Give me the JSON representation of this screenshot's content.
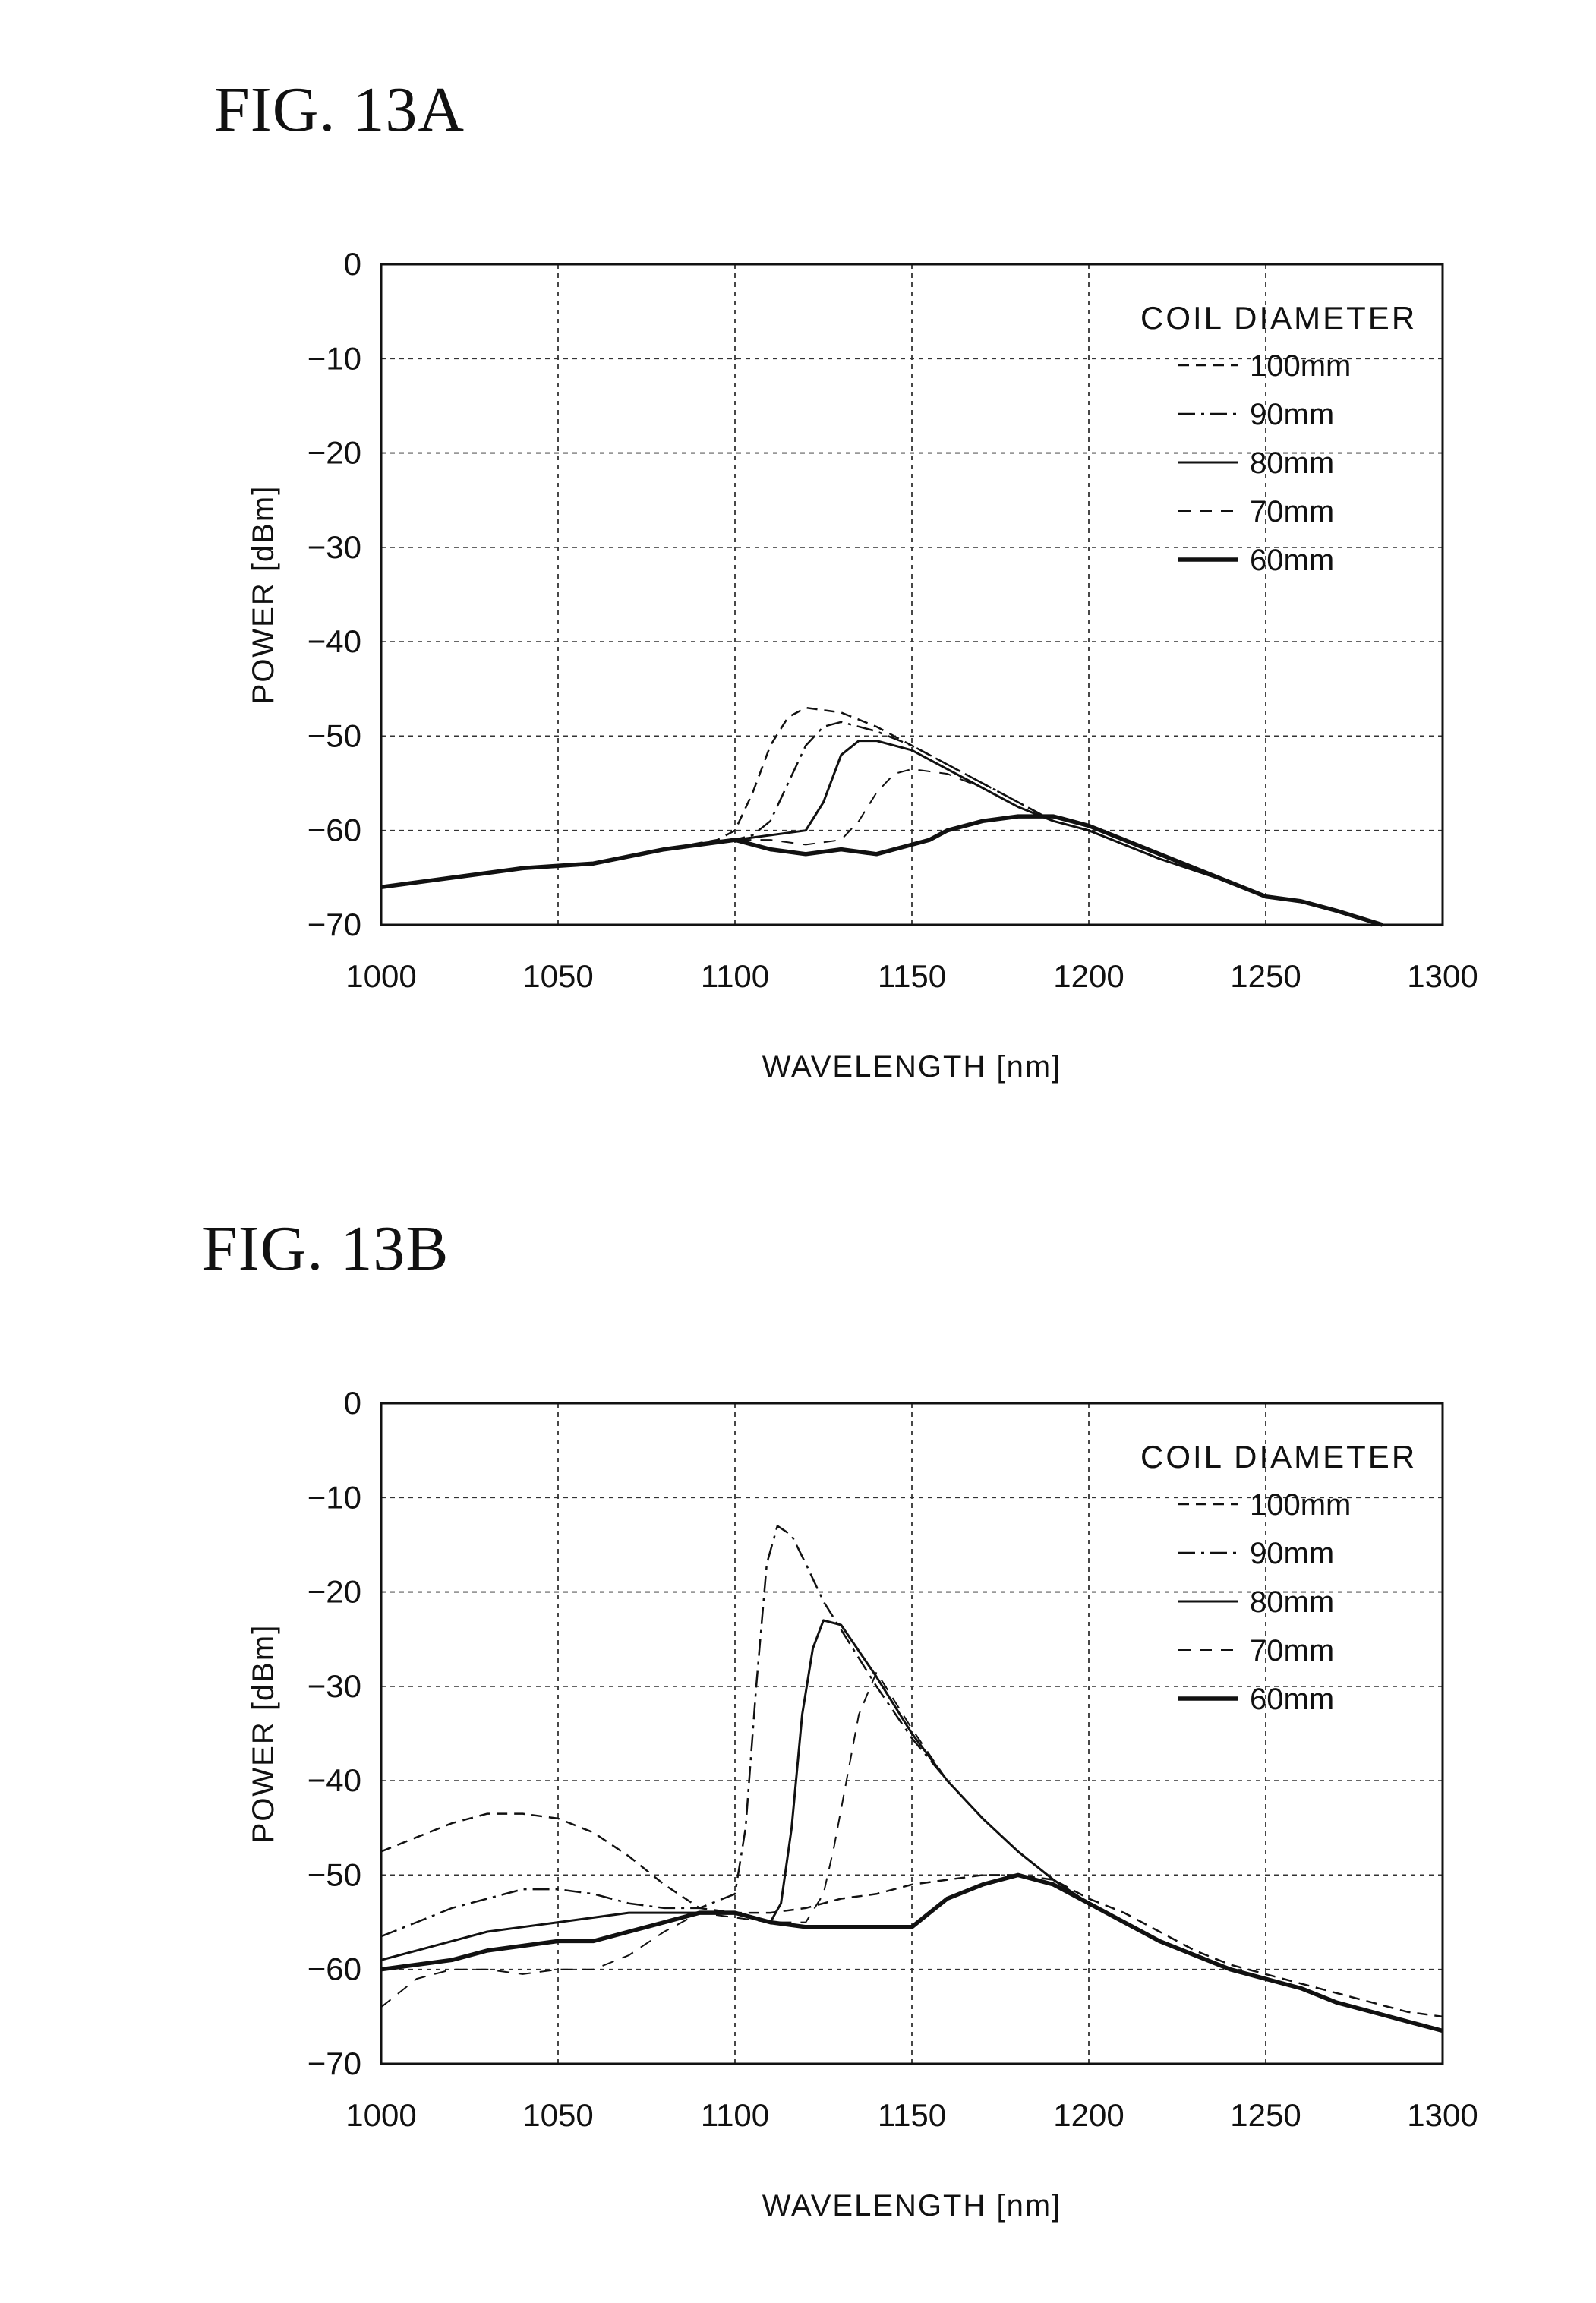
{
  "figures": [
    {
      "title": "FIG. 13A"
    },
    {
      "title": "FIG. 13B"
    }
  ],
  "chart_data": [
    {
      "type": "line",
      "title": "FIG. 13A",
      "xlabel": "WAVELENGTH [nm]",
      "ylabel": "POWER [dBm]",
      "xlim": [
        1000,
        1300
      ],
      "ylim": [
        -70,
        0
      ],
      "xticks": [
        1000,
        1050,
        1100,
        1150,
        1200,
        1250,
        1300
      ],
      "yticks": [
        0,
        -10,
        -20,
        -30,
        -40,
        -50,
        -60,
        -70
      ],
      "grid": true,
      "legend_title": "COIL DIAMETER",
      "legend_position": "top-right",
      "series": [
        {
          "name": "100mm",
          "style": "dashed",
          "x": [
            1000,
            1020,
            1040,
            1060,
            1080,
            1095,
            1100,
            1105,
            1110,
            1115,
            1120,
            1130,
            1140,
            1150,
            1160,
            1170,
            1180,
            1190,
            1200,
            1210,
            1220,
            1240,
            1250,
            1260,
            1270,
            1283
          ],
          "y": [
            -66,
            -65,
            -64,
            -63.5,
            -62,
            -61,
            -60,
            -56,
            -51,
            -48,
            -47,
            -47.5,
            -49,
            -51,
            -53,
            -55,
            -57,
            -59,
            -60,
            -61.5,
            -63,
            -65.5,
            -67,
            -67.5,
            -68.5,
            -70
          ]
        },
        {
          "name": "90mm",
          "style": "dashdot",
          "x": [
            1000,
            1020,
            1040,
            1060,
            1080,
            1100,
            1105,
            1110,
            1115,
            1120,
            1125,
            1130,
            1140,
            1150,
            1160,
            1170,
            1180,
            1190,
            1200,
            1210,
            1220,
            1240,
            1250,
            1260,
            1270,
            1283
          ],
          "y": [
            -66,
            -65,
            -64,
            -63.5,
            -62,
            -61,
            -60.5,
            -59,
            -55,
            -51,
            -49,
            -48.5,
            -49.5,
            -51,
            -53,
            -55,
            -57,
            -59,
            -60,
            -61.5,
            -63,
            -65.5,
            -67,
            -67.5,
            -68.5,
            -70
          ]
        },
        {
          "name": "80mm",
          "style": "solid",
          "x": [
            1000,
            1020,
            1040,
            1060,
            1080,
            1100,
            1110,
            1120,
            1125,
            1130,
            1135,
            1140,
            1150,
            1160,
            1170,
            1180,
            1190,
            1200,
            1210,
            1220,
            1240,
            1250,
            1260,
            1270,
            1283
          ],
          "y": [
            -66,
            -65,
            -64,
            -63.5,
            -62,
            -61,
            -60.5,
            -60,
            -57,
            -52,
            -50.5,
            -50.5,
            -51.5,
            -53.5,
            -55.5,
            -57.5,
            -59,
            -60,
            -61.5,
            -63,
            -65.5,
            -67,
            -67.5,
            -68.5,
            -70
          ]
        },
        {
          "name": "70mm",
          "style": "dashed-light",
          "x": [
            1000,
            1020,
            1040,
            1060,
            1080,
            1100,
            1110,
            1120,
            1130,
            1135,
            1140,
            1145,
            1150,
            1160,
            1170,
            1180,
            1190,
            1200,
            1210,
            1220,
            1240,
            1250,
            1260,
            1270,
            1283
          ],
          "y": [
            -66,
            -65,
            -64,
            -63.5,
            -62,
            -61,
            -61,
            -61.5,
            -61,
            -59,
            -56,
            -54,
            -53.5,
            -54,
            -55.5,
            -57.5,
            -59,
            -60,
            -61.5,
            -63,
            -65.5,
            -67,
            -67.5,
            -68.5,
            -70
          ]
        },
        {
          "name": "60mm",
          "style": "solid-bold",
          "x": [
            1000,
            1020,
            1040,
            1060,
            1080,
            1100,
            1110,
            1120,
            1130,
            1140,
            1150,
            1155,
            1160,
            1170,
            1180,
            1190,
            1200,
            1210,
            1220,
            1240,
            1250,
            1260,
            1270,
            1283
          ],
          "y": [
            -66,
            -65,
            -64,
            -63.5,
            -62,
            -61,
            -62,
            -62.5,
            -62,
            -62.5,
            -61.5,
            -61,
            -60,
            -59,
            -58.5,
            -58.5,
            -59.5,
            -61,
            -62.5,
            -65.5,
            -67,
            -67.5,
            -68.5,
            -70
          ]
        }
      ]
    },
    {
      "type": "line",
      "title": "FIG. 13B",
      "xlabel": "WAVELENGTH [nm]",
      "ylabel": "POWER [dBm]",
      "xlim": [
        1000,
        1300
      ],
      "ylim": [
        -70,
        0
      ],
      "xticks": [
        1000,
        1050,
        1100,
        1150,
        1200,
        1250,
        1300
      ],
      "yticks": [
        0,
        -10,
        -20,
        -30,
        -40,
        -50,
        -60,
        -70
      ],
      "grid": true,
      "legend_title": "COIL DIAMETER",
      "legend_position": "top-right",
      "series": [
        {
          "name": "100mm",
          "style": "dashed",
          "x": [
            1000,
            1010,
            1020,
            1030,
            1040,
            1050,
            1060,
            1070,
            1080,
            1090,
            1100,
            1110,
            1120,
            1130,
            1140,
            1150,
            1160,
            1170,
            1180,
            1190,
            1200,
            1210,
            1220,
            1230,
            1240,
            1250,
            1260,
            1270,
            1280,
            1290,
            1300
          ],
          "y": [
            -47.5,
            -46,
            -44.5,
            -43.5,
            -43.5,
            -44,
            -45.5,
            -48,
            -51,
            -53.5,
            -54,
            -54,
            -53.5,
            -52.5,
            -52,
            -51,
            -50.5,
            -50,
            -50,
            -50.5,
            -52.5,
            -54,
            -56,
            -58,
            -59.5,
            -60.5,
            -61.5,
            -62.5,
            -63.5,
            -64.5,
            -65
          ]
        },
        {
          "name": "90mm",
          "style": "dashdot",
          "x": [
            1000,
            1010,
            1020,
            1030,
            1040,
            1050,
            1060,
            1070,
            1080,
            1090,
            1100,
            1103,
            1106,
            1109,
            1112,
            1116,
            1120,
            1125,
            1130,
            1140,
            1150,
            1160,
            1170,
            1180,
            1190,
            1200,
            1210,
            1220,
            1230,
            1240,
            1250,
            1260,
            1270,
            1280,
            1290,
            1300
          ],
          "y": [
            -56.5,
            -55,
            -53.5,
            -52.5,
            -51.5,
            -51.5,
            -52,
            -53,
            -53.5,
            -53.5,
            -52,
            -45,
            -30,
            -17,
            -13,
            -14,
            -17,
            -21,
            -24,
            -30,
            -35.5,
            -40,
            -44,
            -47.5,
            -50.5,
            -53,
            -55,
            -57,
            -58.5,
            -60,
            -61,
            -62,
            -63.5,
            -64.5,
            -65.5,
            -66.5
          ]
        },
        {
          "name": "80mm",
          "style": "solid",
          "x": [
            1000,
            1010,
            1020,
            1030,
            1040,
            1050,
            1060,
            1070,
            1080,
            1090,
            1100,
            1110,
            1113,
            1116,
            1119,
            1122,
            1125,
            1130,
            1140,
            1150,
            1160,
            1170,
            1180,
            1190,
            1200,
            1210,
            1220,
            1230,
            1240,
            1250,
            1260,
            1270,
            1280,
            1290,
            1300
          ],
          "y": [
            -59,
            -58,
            -57,
            -56,
            -55.5,
            -55,
            -54.5,
            -54,
            -54,
            -54,
            -54,
            -55,
            -53,
            -45,
            -33,
            -26,
            -23,
            -23.5,
            -29,
            -35,
            -40,
            -44,
            -47.5,
            -50.5,
            -53,
            -55,
            -57,
            -58.5,
            -60,
            -61,
            -62,
            -63.5,
            -64.5,
            -65.5,
            -66.5
          ]
        },
        {
          "name": "70mm",
          "style": "dashed-light",
          "x": [
            1000,
            1010,
            1020,
            1030,
            1040,
            1050,
            1060,
            1070,
            1080,
            1090,
            1100,
            1110,
            1120,
            1125,
            1128,
            1131,
            1135,
            1140,
            1150,
            1160,
            1170,
            1180,
            1190,
            1200,
            1210,
            1220,
            1230,
            1240,
            1250,
            1260,
            1270,
            1280,
            1290,
            1300
          ],
          "y": [
            -64,
            -61,
            -60,
            -60,
            -60.5,
            -60,
            -60,
            -58.5,
            -56,
            -54,
            -54.5,
            -55,
            -55,
            -52,
            -47,
            -41,
            -33,
            -28.5,
            -34.5,
            -40,
            -44,
            -47.5,
            -50.5,
            -53,
            -55,
            -57,
            -58.5,
            -60,
            -61,
            -62,
            -63.5,
            -64.5,
            -65.5,
            -66.5
          ]
        },
        {
          "name": "60mm",
          "style": "solid-bold",
          "x": [
            1000,
            1010,
            1020,
            1030,
            1040,
            1050,
            1060,
            1070,
            1080,
            1090,
            1100,
            1110,
            1120,
            1130,
            1140,
            1150,
            1155,
            1160,
            1170,
            1180,
            1190,
            1200,
            1210,
            1220,
            1230,
            1240,
            1250,
            1260,
            1270,
            1280,
            1290,
            1300
          ],
          "y": [
            -60,
            -59.5,
            -59,
            -58,
            -57.5,
            -57,
            -57,
            -56,
            -55,
            -54,
            -54,
            -55,
            -55.5,
            -55.5,
            -55.5,
            -55.5,
            -54,
            -52.5,
            -51,
            -50,
            -51,
            -53,
            -55,
            -57,
            -58.5,
            -60,
            -61,
            -62,
            -63.5,
            -64.5,
            -65.5,
            -66.5
          ]
        }
      ]
    }
  ]
}
